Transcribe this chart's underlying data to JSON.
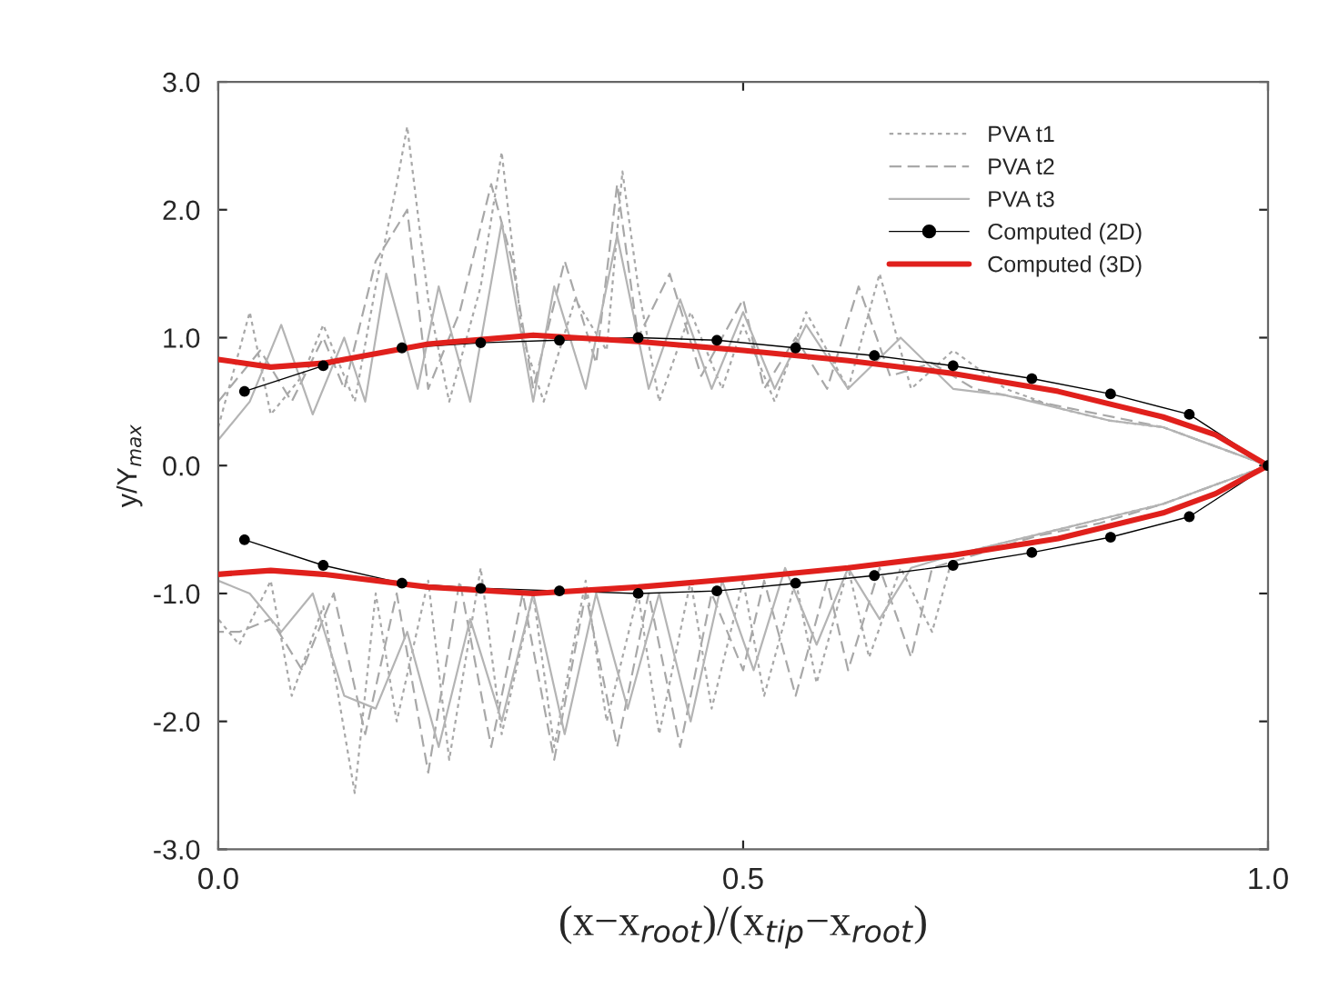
{
  "chart_data": {
    "type": "line",
    "xlabel": "(x−x$_{root}$)/(x$_{tip}$−x$_{root}$)",
    "ylabel": "y/Y$_{max}$",
    "xlim": [
      0,
      1
    ],
    "xticks": [
      {
        "value": 0,
        "label": "0.0"
      },
      {
        "value": 0.5,
        "label": "0.5"
      },
      {
        "value": 1,
        "label": "1.0"
      }
    ],
    "ylim": [
      -3,
      3
    ],
    "yticks": [
      {
        "value": -3,
        "label": "-3.0"
      },
      {
        "value": -2,
        "label": "-2.0"
      },
      {
        "value": -1,
        "label": "-1.0"
      },
      {
        "value": 0,
        "label": "0.0"
      },
      {
        "value": 1,
        "label": "1.0"
      },
      {
        "value": 2,
        "label": "2.0"
      },
      {
        "value": 3,
        "label": "3.0"
      }
    ],
    "grid": false,
    "legend": "top right",
    "series": [
      {
        "name": "PVA t1",
        "color": "#a8a8a8",
        "line_style": "dotted",
        "marker": "none",
        "x": [
          0,
          0.03,
          0.05,
          0.08,
          0.1,
          0.13,
          0.15,
          0.17,
          0.18,
          0.2,
          0.22,
          0.25,
          0.27,
          0.29,
          0.31,
          0.34,
          0.37,
          0.385,
          0.4,
          0.42,
          0.45,
          0.48,
          0.5,
          0.53,
          0.56,
          0.6,
          0.63,
          0.66,
          0.7,
          0.75,
          0.8,
          0.85,
          0.9,
          0.95,
          1.0,
          0.95,
          0.9,
          0.85,
          0.8,
          0.75,
          0.7,
          0.68,
          0.65,
          0.62,
          0.6,
          0.57,
          0.55,
          0.52,
          0.5,
          0.47,
          0.45,
          0.42,
          0.4,
          0.37,
          0.35,
          0.32,
          0.3,
          0.27,
          0.25,
          0.22,
          0.2,
          0.17,
          0.15,
          0.13,
          0.1,
          0.07,
          0.05,
          0.02,
          0
        ],
        "values": [
          0.3,
          1.2,
          0.4,
          0.7,
          1.1,
          0.5,
          1.4,
          2.2,
          2.65,
          1.3,
          0.5,
          1.4,
          2.45,
          1.0,
          0.5,
          1.3,
          0.9,
          2.3,
          1.4,
          0.5,
          1.2,
          0.6,
          1.1,
          0.5,
          1.2,
          0.6,
          1.5,
          0.6,
          0.9,
          0.6,
          0.45,
          0.35,
          0.3,
          0.15,
          0.0,
          -0.15,
          -0.3,
          -0.4,
          -0.5,
          -0.6,
          -0.7,
          -1.3,
          -0.8,
          -1.5,
          -0.8,
          -1.7,
          -0.9,
          -1.8,
          -0.9,
          -1.9,
          -0.9,
          -2.1,
          -1.0,
          -2.0,
          -0.9,
          -2.2,
          -1.0,
          -2.1,
          -0.8,
          -2.3,
          -0.9,
          -2.0,
          -1.0,
          -2.56,
          -1.1,
          -1.8,
          -0.9,
          -1.4,
          -1.2
        ]
      },
      {
        "name": "PVA t2",
        "color": "#a8a8a8",
        "line_style": "dashed",
        "marker": "none",
        "x": [
          0,
          0.04,
          0.07,
          0.1,
          0.12,
          0.15,
          0.18,
          0.2,
          0.23,
          0.26,
          0.28,
          0.3,
          0.33,
          0.36,
          0.38,
          0.4,
          0.43,
          0.46,
          0.5,
          0.52,
          0.55,
          0.58,
          0.61,
          0.64,
          0.68,
          0.72,
          0.78,
          0.84,
          0.9,
          0.95,
          1.0,
          0.95,
          0.9,
          0.84,
          0.78,
          0.72,
          0.68,
          0.66,
          0.63,
          0.6,
          0.58,
          0.55,
          0.52,
          0.5,
          0.47,
          0.44,
          0.41,
          0.38,
          0.35,
          0.32,
          0.29,
          0.26,
          0.23,
          0.2,
          0.17,
          0.14,
          0.11,
          0.08,
          0.05,
          0.02,
          0
        ],
        "values": [
          0.5,
          0.9,
          0.5,
          1.0,
          0.6,
          1.6,
          2.0,
          0.6,
          1.2,
          2.2,
          1.6,
          0.6,
          1.6,
          0.8,
          2.2,
          1.0,
          1.5,
          0.7,
          1.3,
          0.6,
          1.0,
          0.6,
          1.4,
          0.7,
          0.8,
          0.6,
          0.5,
          0.4,
          0.3,
          0.15,
          0.0,
          -0.15,
          -0.3,
          -0.45,
          -0.55,
          -0.7,
          -0.8,
          -1.5,
          -0.8,
          -1.6,
          -0.9,
          -1.8,
          -0.9,
          -1.6,
          -1.0,
          -2.2,
          -1.0,
          -2.2,
          -1.0,
          -2.3,
          -1.0,
          -2.2,
          -0.9,
          -2.4,
          -1.0,
          -2.1,
          -1.0,
          -1.6,
          -1.2,
          -1.3,
          -1.3
        ]
      },
      {
        "name": "PVA t3",
        "color": "#b4b4b4",
        "line_style": "solid",
        "marker": "none",
        "x": [
          0,
          0.03,
          0.06,
          0.09,
          0.12,
          0.14,
          0.16,
          0.19,
          0.21,
          0.24,
          0.27,
          0.3,
          0.32,
          0.35,
          0.38,
          0.41,
          0.44,
          0.47,
          0.5,
          0.53,
          0.56,
          0.6,
          0.65,
          0.7,
          0.75,
          0.8,
          0.85,
          0.9,
          0.95,
          1.0,
          0.95,
          0.9,
          0.85,
          0.8,
          0.75,
          0.7,
          0.66,
          0.63,
          0.6,
          0.57,
          0.54,
          0.51,
          0.48,
          0.45,
          0.42,
          0.39,
          0.36,
          0.33,
          0.3,
          0.27,
          0.24,
          0.21,
          0.18,
          0.15,
          0.12,
          0.09,
          0.06,
          0.03,
          0
        ],
        "values": [
          0.2,
          0.5,
          1.1,
          0.4,
          1.0,
          0.5,
          1.5,
          0.6,
          1.4,
          0.5,
          1.9,
          0.5,
          1.4,
          0.6,
          1.8,
          0.6,
          1.3,
          0.6,
          1.2,
          0.6,
          1.1,
          0.6,
          1.0,
          0.6,
          0.55,
          0.45,
          0.35,
          0.3,
          0.15,
          0.0,
          -0.15,
          -0.3,
          -0.4,
          -0.5,
          -0.6,
          -0.7,
          -0.8,
          -1.2,
          -0.8,
          -1.4,
          -0.8,
          -1.6,
          -0.9,
          -2.0,
          -1.0,
          -1.9,
          -1.0,
          -2.1,
          -1.0,
          -2.0,
          -1.2,
          -2.2,
          -1.3,
          -1.9,
          -1.8,
          -1.0,
          -1.3,
          -1.0,
          -0.9
        ]
      },
      {
        "name": "Computed (2D)",
        "color": "#000000",
        "line_style": "solid",
        "marker": "circle",
        "x": [
          0.025,
          0.1,
          0.175,
          0.25,
          0.325,
          0.4,
          0.475,
          0.55,
          0.625,
          0.7,
          0.775,
          0.85,
          0.925,
          1.0,
          0.925,
          0.85,
          0.775,
          0.7,
          0.625,
          0.55,
          0.475,
          0.4,
          0.325,
          0.25,
          0.175,
          0.1,
          0.025
        ],
        "values": [
          0.58,
          0.78,
          0.92,
          0.96,
          0.98,
          1.0,
          0.98,
          0.92,
          0.86,
          0.78,
          0.68,
          0.56,
          0.4,
          0.0,
          -0.4,
          -0.56,
          -0.68,
          -0.78,
          -0.86,
          -0.92,
          -0.98,
          -1.0,
          -0.98,
          -0.96,
          -0.92,
          -0.78,
          -0.58
        ]
      },
      {
        "name": "Computed (3D)",
        "color": "#e0201c",
        "line_style": "solid",
        "marker": "none",
        "x": [
          0,
          0.05,
          0.1,
          0.2,
          0.3,
          0.4,
          0.5,
          0.6,
          0.7,
          0.8,
          0.9,
          0.95,
          1.0,
          0.95,
          0.9,
          0.8,
          0.7,
          0.6,
          0.5,
          0.4,
          0.3,
          0.2,
          0.1,
          0.05,
          0
        ],
        "values": [
          0.83,
          0.77,
          0.8,
          0.95,
          1.02,
          0.97,
          0.9,
          0.82,
          0.72,
          0.58,
          0.38,
          0.24,
          0.0,
          -0.22,
          -0.37,
          -0.57,
          -0.7,
          -0.8,
          -0.88,
          -0.95,
          -1.0,
          -0.95,
          -0.85,
          -0.82,
          -0.85
        ]
      }
    ]
  }
}
